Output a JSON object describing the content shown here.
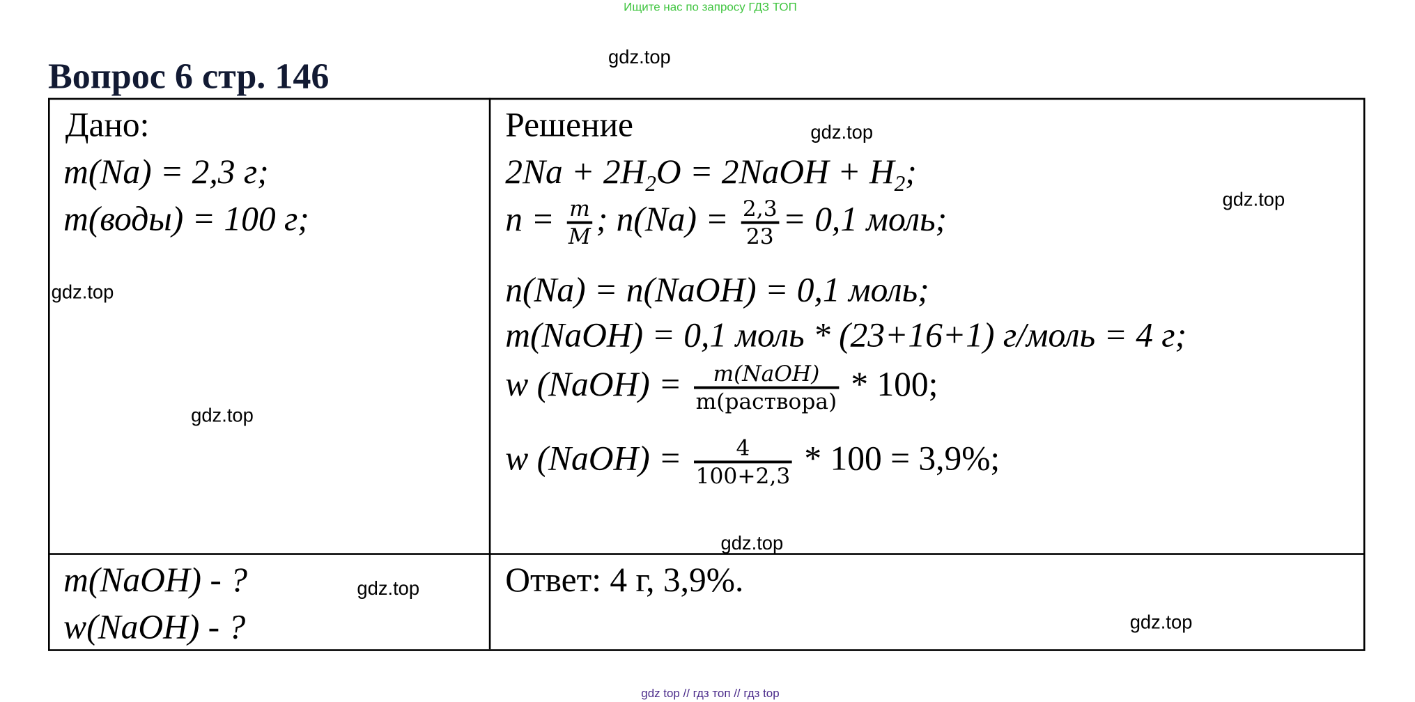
{
  "banner": "Ищите нас по запросу ГДЗ ТОП",
  "title": "Вопрос 6 стр. 146",
  "watermark": "gdz.top",
  "given": {
    "header": "Дано:",
    "lines": [
      "m(Na) = 2,3 г;",
      "m(воды) = 100 г;"
    ],
    "find": [
      "m(NaOH) - ?",
      "w(NaOH) - ?"
    ]
  },
  "solution": {
    "header": "Решение",
    "reaction": {
      "a": "2Na + 2H",
      "sub1": "2",
      "b": "O = 2NaOH + H",
      "sub2": "2",
      "c": ";"
    },
    "line2": {
      "lhs": "n = ",
      "f1_num": "m",
      "f1_den": "M",
      "mid": "; n(Na) = ",
      "f2_num": "2,3",
      "f2_den": "23",
      "rhs": "= 0,1 моль;"
    },
    "line3": "n(Na) = n(NaOH) = 0,1 моль;",
    "line4": "m(NaOH) = 0,1 моль * (23+16+1) г/моль = 4 г;",
    "line5": {
      "lhs": "w (NaOH) = ",
      "num": "m(NaOH)",
      "den": "m(раствора)",
      "rhs": " * 100;"
    },
    "line6": {
      "lhs": "w (NaOH) = ",
      "num": "4",
      "den": "100+2,3",
      "rhs": " * 100 = 3,9%;"
    }
  },
  "answer": "Ответ: 4 г, 3,9%.",
  "footer": "gdz top  //  гдз топ  //  гдз top"
}
